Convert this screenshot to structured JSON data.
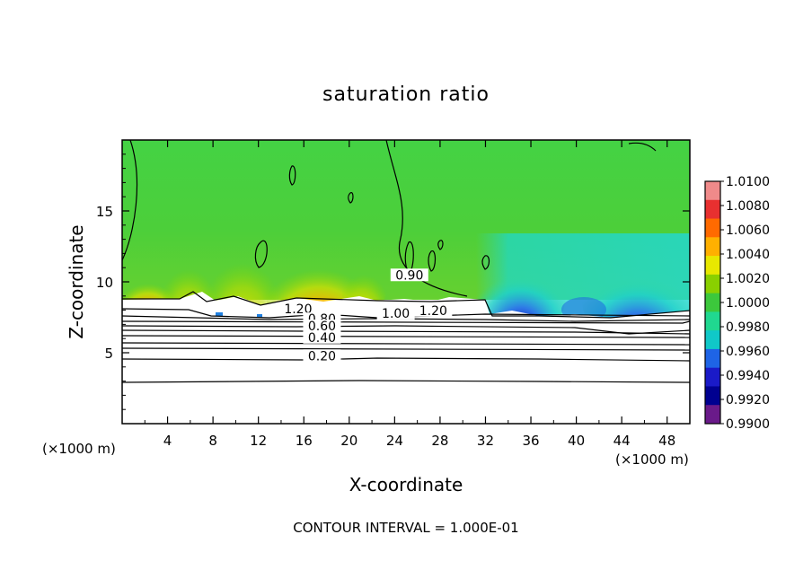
{
  "chart_data": {
    "type": "heatmap",
    "title": "saturation ratio",
    "xlabel": "X-coordinate",
    "ylabel": "Z-coordinate",
    "x_unit_left": "(×1000 m)",
    "x_unit_right": "(×1000 m)",
    "xlim": [
      0,
      50
    ],
    "ylim": [
      0,
      20
    ],
    "x_ticks": [
      4,
      8,
      12,
      16,
      20,
      24,
      28,
      32,
      36,
      40,
      44,
      48
    ],
    "y_ticks": [
      5,
      10,
      15
    ],
    "grid": false,
    "legend": "right",
    "colorbar": {
      "ticks": [
        "1.0100",
        "1.0080",
        "1.0060",
        "1.0040",
        "1.0020",
        "1.0000",
        "0.9980",
        "0.9960",
        "0.9940",
        "0.9920",
        "0.9900"
      ],
      "colors": [
        "#f08a8a",
        "#e83030",
        "#ff6a00",
        "#ffb000",
        "#e8e800",
        "#8ad000",
        "#3cc83c",
        "#20d890",
        "#10c8c8",
        "#1e64e6",
        "#1a1ac8",
        "#000090",
        "#6a1a8a"
      ]
    },
    "contour_labels": [
      {
        "text": "1.20",
        "x": 15.5,
        "y": 7.9
      },
      {
        "text": "0.80",
        "x": 17.6,
        "y": 7.2
      },
      {
        "text": "0.60",
        "x": 17.6,
        "y": 6.7
      },
      {
        "text": "0.40",
        "x": 17.6,
        "y": 5.9
      },
      {
        "text": "0.20",
        "x": 17.6,
        "y": 4.6
      },
      {
        "text": "1.00",
        "x": 24.1,
        "y": 7.6
      },
      {
        "text": "1.20",
        "x": 27.4,
        "y": 7.8
      },
      {
        "text": "0.90",
        "x": 25.3,
        "y": 10.3
      }
    ],
    "footer": "CONTOUR INTERVAL = 1.000E-01"
  }
}
